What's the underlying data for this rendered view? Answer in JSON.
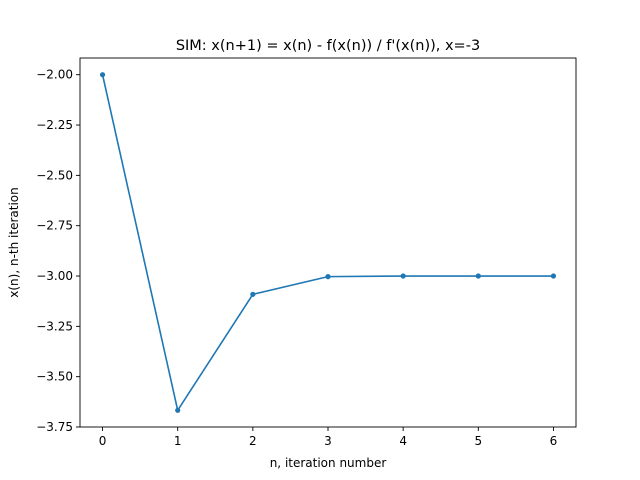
{
  "chart_data": {
    "type": "line",
    "title": "SIM: x(n+1) = x(n) - f(x(n)) / f'(x(n)), x=-3",
    "xlabel": "n, iteration number",
    "ylabel": "x(n), n-th iteration",
    "x": [
      0,
      1,
      2,
      3,
      4,
      5,
      6
    ],
    "series": [
      {
        "values": [
          -2.0,
          -3.667,
          -3.091,
          -3.003,
          -3.0,
          -3.0,
          -3.0
        ],
        "color": "#1f77b4",
        "marker": "circle"
      }
    ],
    "xticks": [
      0,
      1,
      2,
      3,
      4,
      5,
      6
    ],
    "xtick_labels": [
      "0",
      "1",
      "2",
      "3",
      "4",
      "5",
      "6"
    ],
    "yticks": [
      -2.0,
      -2.25,
      -2.5,
      -2.75,
      -3.0,
      -3.25,
      -3.5,
      -3.75
    ],
    "ytick_labels": [
      "−2.00",
      "−2.25",
      "−2.50",
      "−2.75",
      "−3.00",
      "−3.25",
      "−3.50",
      "−3.75"
    ],
    "xlim": [
      -0.3,
      6.3
    ],
    "ylim": [
      -3.75,
      -1.917
    ],
    "grid": false,
    "legend": false
  }
}
